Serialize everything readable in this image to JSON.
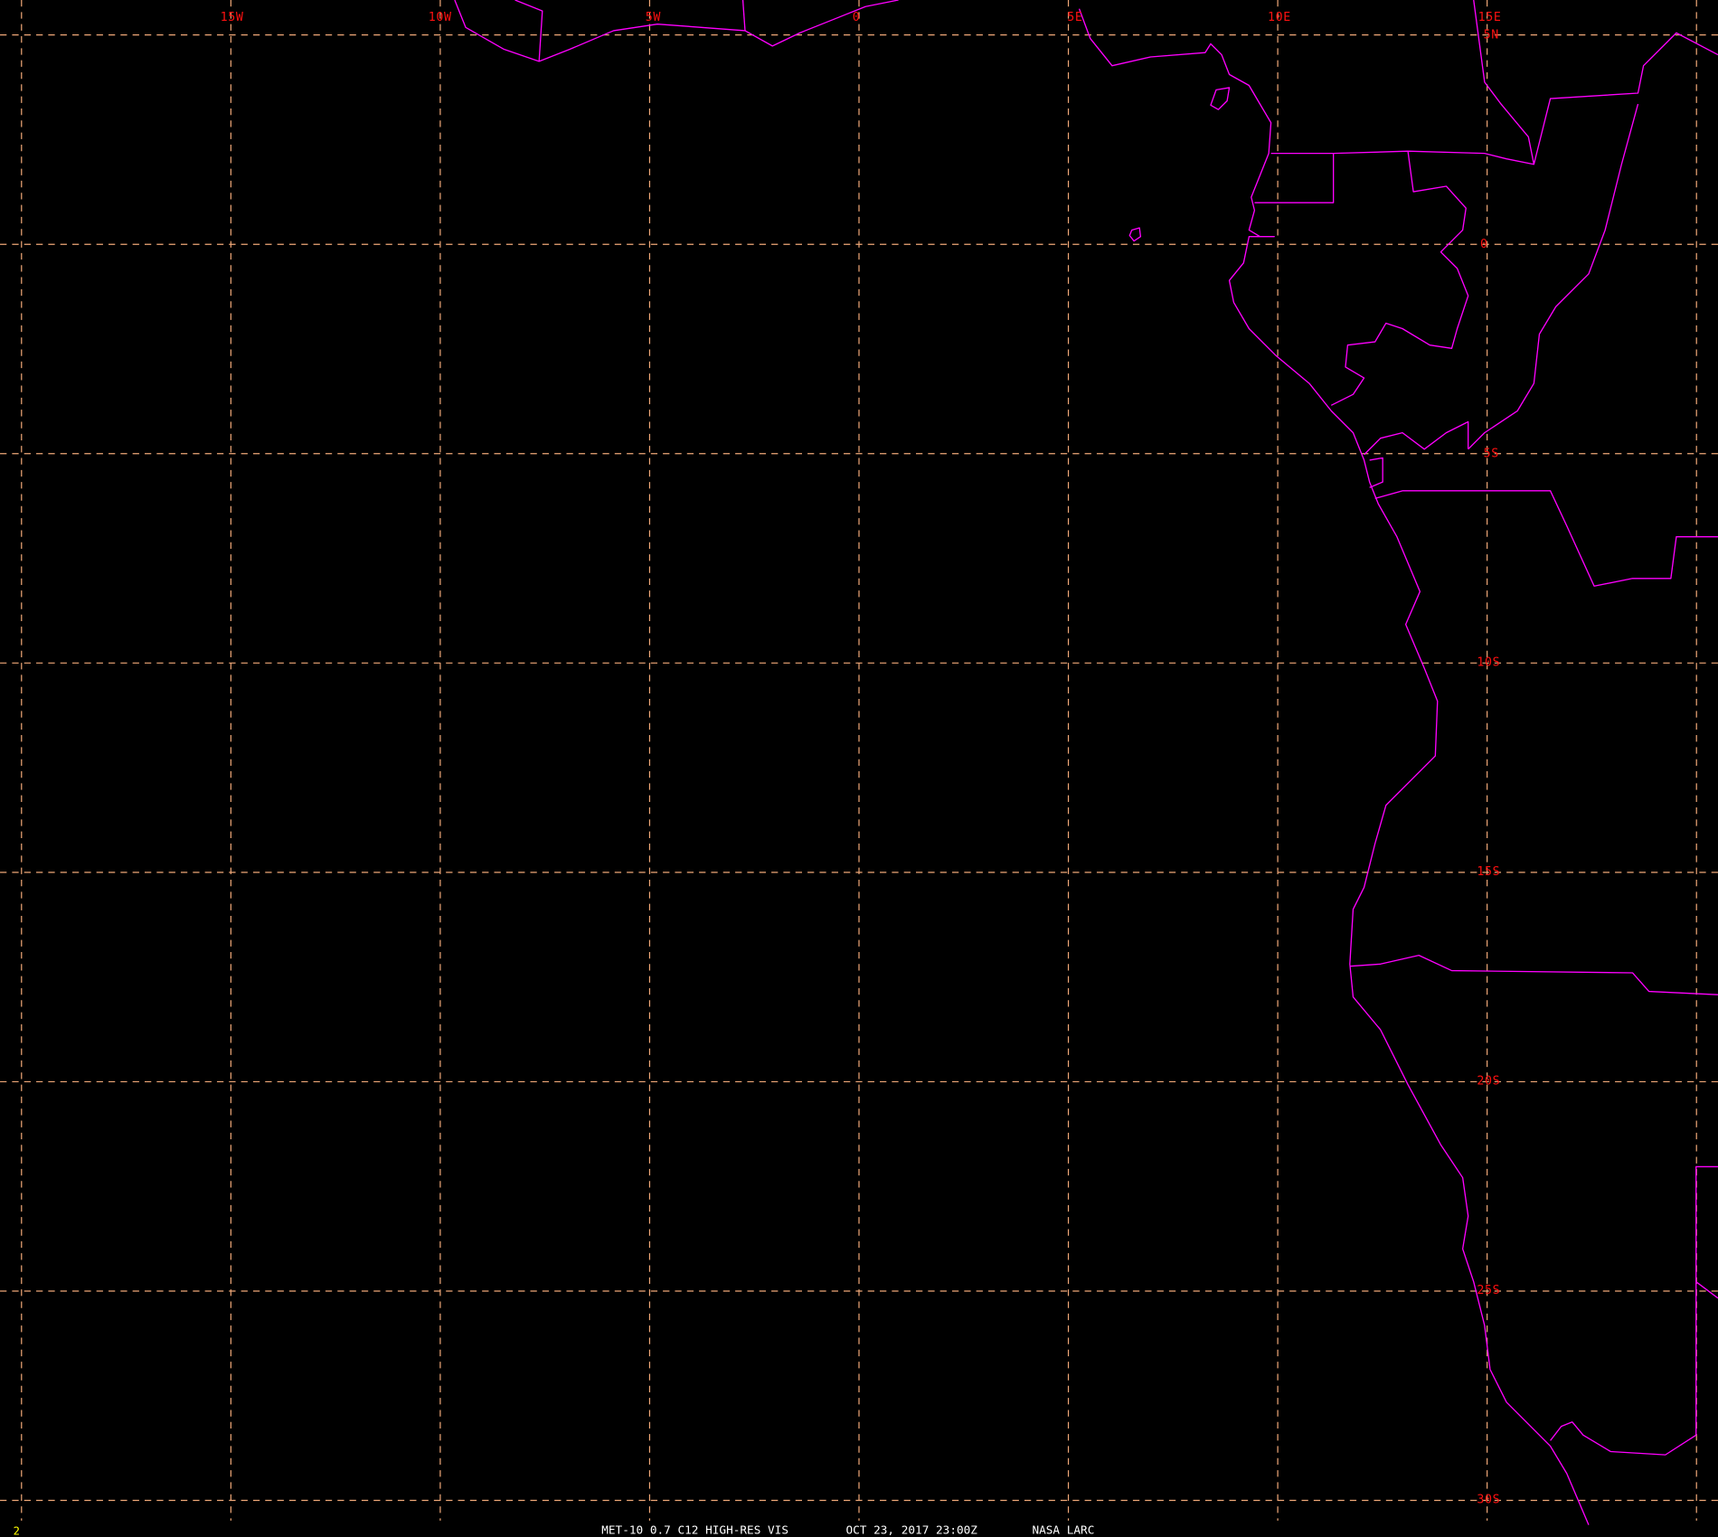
{
  "map": {
    "projection": "equirectangular",
    "lon_labels": [
      "15W",
      "10W",
      "5W",
      "0",
      "5E",
      "10E",
      "15E"
    ],
    "lat_labels": [
      "5N",
      "0",
      "5S",
      "10S",
      "15S",
      "20S",
      "25S",
      "30S"
    ],
    "colors": {
      "background": "#000000",
      "grid": "#f0a878",
      "labels": "#ff1010",
      "coastlines": "#ff00ff",
      "footer": "#ffffff",
      "frame_number": "#ffff00"
    }
  },
  "footer": {
    "satellite": "MET-10 0.7 C12 HIGH-RES VIS",
    "datetime": "OCT 23, 2017 23:00Z",
    "source": "NASA LARC"
  },
  "frame_number": "2"
}
